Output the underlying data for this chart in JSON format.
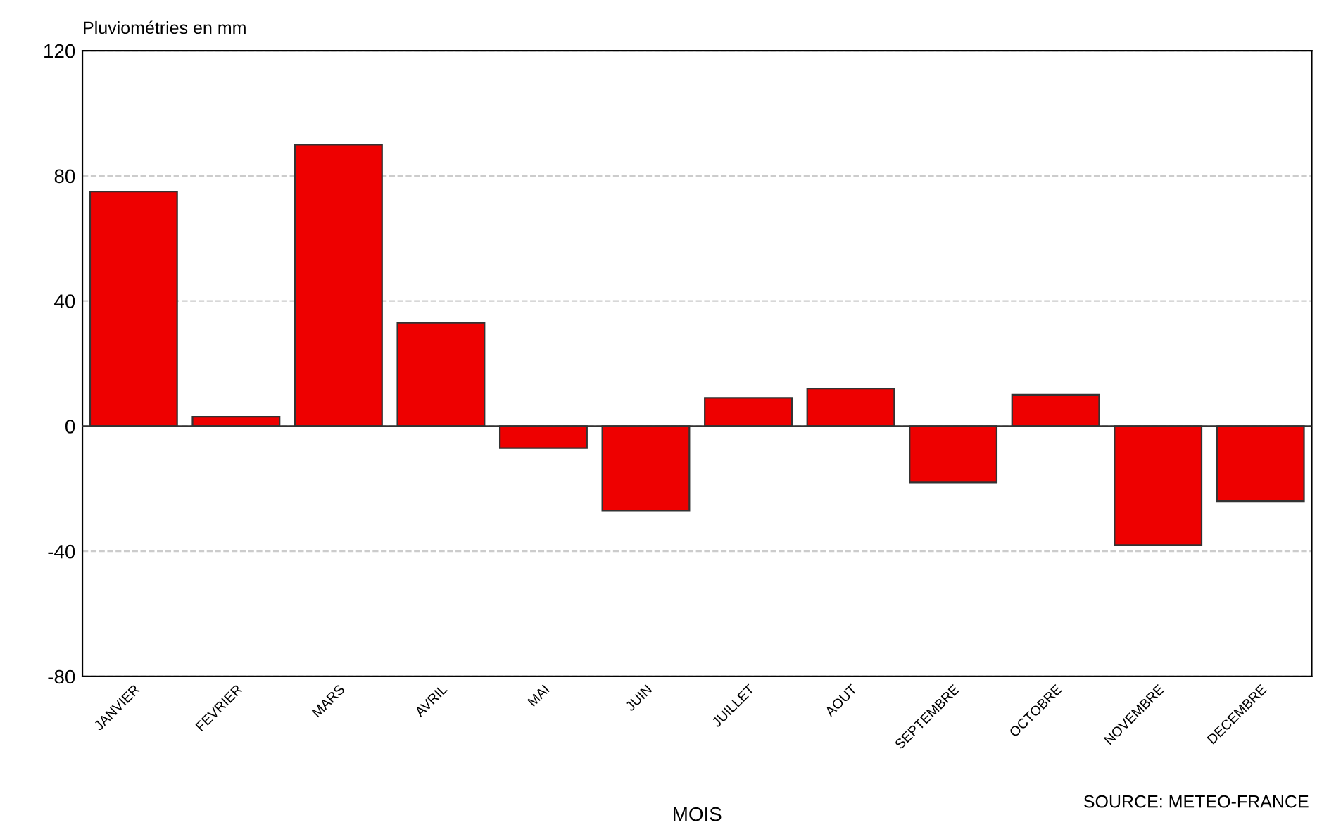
{
  "chart_data": {
    "type": "bar",
    "ylabel": "Pluviométries en mm",
    "xlabel": "MOIS",
    "categories": [
      "JANVIER",
      "FEVRIER",
      "MARS",
      "AVRIL",
      "MAI",
      "JUIN",
      "JUILLET",
      "AOUT",
      "SEPTEMBRE",
      "OCTOBRE",
      "NOVEMBRE",
      "DECEMBRE"
    ],
    "values": [
      75,
      3,
      90,
      33,
      -7,
      -27,
      9,
      12,
      -18,
      10,
      -38,
      -24
    ],
    "color": "#ee0000",
    "ylim": [
      -80,
      120
    ],
    "yticks": [
      -80,
      -40,
      0,
      40,
      80,
      120
    ],
    "grid": "y",
    "annotations": [
      "SOURCE: METEO-FRANCE"
    ]
  }
}
